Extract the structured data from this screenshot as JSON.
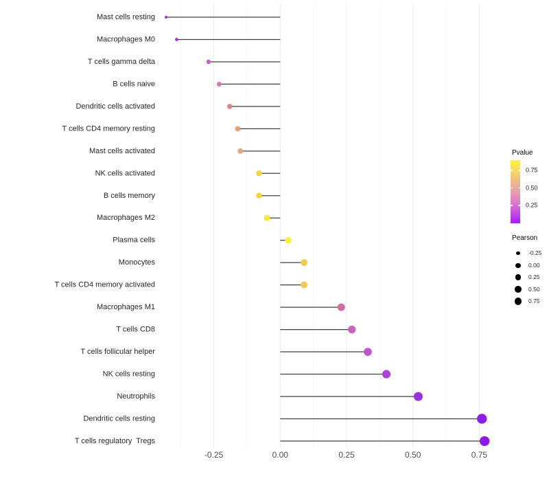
{
  "chart_data": {
    "type": "lollipop",
    "title": "",
    "xlabel": "",
    "ylabel": "",
    "grid": "vertical-only",
    "xlim": [
      -0.4525,
      0.807
    ],
    "x_major_ticks": [
      {
        "value": -0.25,
        "label": "-0.25"
      },
      {
        "value": 0.0,
        "label": "0.00"
      },
      {
        "value": 0.25,
        "label": "0.25"
      },
      {
        "value": 0.5,
        "label": "0.50"
      },
      {
        "value": 0.75,
        "label": "0.75"
      }
    ],
    "x_minor_ticks": [
      -0.375,
      -0.125,
      0.125,
      0.375,
      0.625
    ],
    "stem_baseline": 0.0,
    "points": [
      {
        "label": "Mast cells resting",
        "pearson": -0.43,
        "color": "#9A36C9"
      },
      {
        "label": "Macrophages M0",
        "pearson": -0.39,
        "color": "#A433D1"
      },
      {
        "label": "T cells gamma delta",
        "pearson": -0.27,
        "color": "#C760C5"
      },
      {
        "label": "B cells naive",
        "pearson": -0.23,
        "color": "#D279AC"
      },
      {
        "label": "Dendritic cells activated",
        "pearson": -0.19,
        "color": "#DD8284"
      },
      {
        "label": "T cells CD4 memory resting",
        "pearson": -0.16,
        "color": "#E79F73"
      },
      {
        "label": "Mast cells activated",
        "pearson": -0.15,
        "color": "#E6A37C"
      },
      {
        "label": "NK cells activated",
        "pearson": -0.08,
        "color": "#F3D641"
      },
      {
        "label": "B cells memory",
        "pearson": -0.08,
        "color": "#F3D63C"
      },
      {
        "label": "Macrophages M2",
        "pearson": -0.05,
        "color": "#F7E93A"
      },
      {
        "label": "Plasma cells",
        "pearson": 0.03,
        "color": "#F9F03B"
      },
      {
        "label": "Monocytes",
        "pearson": 0.09,
        "color": "#EFCB52"
      },
      {
        "label": "T cells CD4 memory activated",
        "pearson": 0.09,
        "color": "#EFCB52"
      },
      {
        "label": "Macrophages M1",
        "pearson": 0.23,
        "color": "#D06FA4"
      },
      {
        "label": "T cells CD8",
        "pearson": 0.27,
        "color": "#C765BB"
      },
      {
        "label": "T cells follicular helper",
        "pearson": 0.33,
        "color": "#BF55CD"
      },
      {
        "label": "NK cells resting",
        "pearson": 0.4,
        "color": "#AE41DC"
      },
      {
        "label": "Neutrophils",
        "pearson": 0.52,
        "color": "#9930E2"
      },
      {
        "label": "Dendritic cells resting",
        "pearson": 0.76,
        "color": "#8E1CE9"
      },
      {
        "label": "T cells regulatory  Tregs",
        "pearson": 0.77,
        "color": "#8D1AEA"
      }
    ],
    "legend_pvalue": {
      "title": "Pvalue",
      "tick_labels": [
        "0.75",
        "0.50",
        "0.25"
      ],
      "gradient_top_to_bottom": [
        "#FCF33B",
        "#F7DA63",
        "#F0BA88",
        "#E89FAC",
        "#DC7BCB",
        "#C44FE1",
        "#A21DF0"
      ]
    },
    "legend_pearson": {
      "title": "Pearson",
      "labels": [
        "-0.25",
        "0.00",
        "0.25",
        "0.50",
        "0.75"
      ]
    },
    "colors": {
      "stem": "#3F3F3F",
      "major_grid": "#EDEDED",
      "minor_grid": "#F6F6F6",
      "axis_text": "#4D4D4D",
      "category_text": "#262626"
    }
  }
}
